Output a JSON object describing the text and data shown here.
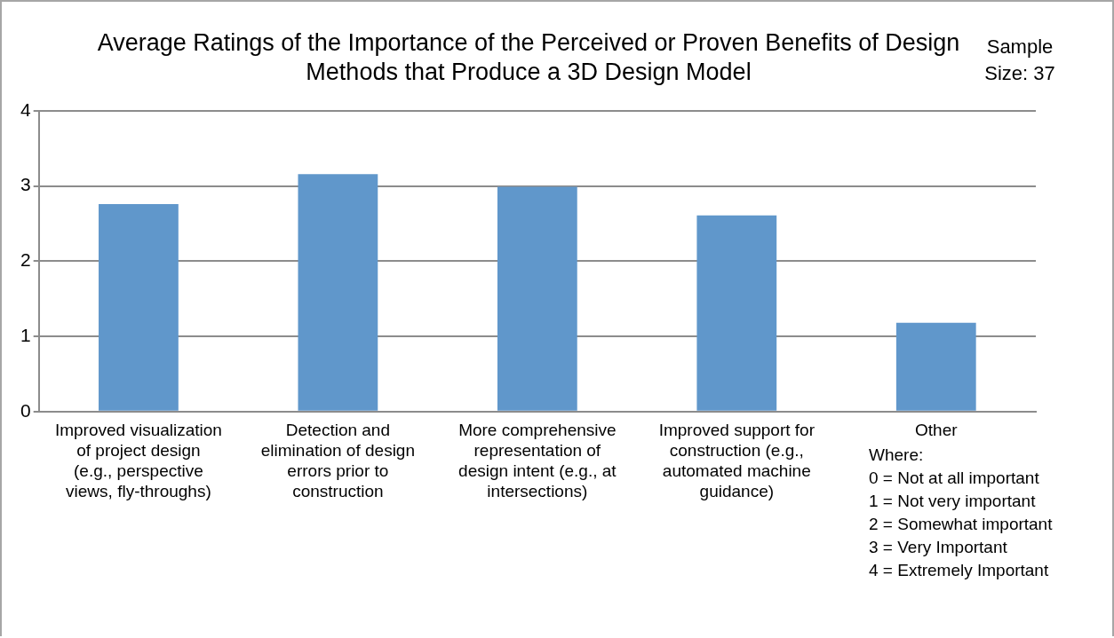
{
  "chart_data": {
    "type": "bar",
    "title": "Average Ratings of the Importance of the Perceived or Proven Benefits of Design Methods that Produce a 3D Design Model",
    "categories": [
      "Improved visualization of project design (e.g., perspective views, fly-throughs)",
      "Detection and elimination of design errors prior to construction",
      "More comprehensive representation of design intent (e.g., at intersections)",
      "Improved support for construction (e.g., automated machine guidance)",
      "Other"
    ],
    "values": [
      2.76,
      3.16,
      2.99,
      2.61,
      1.18
    ],
    "color": "#6097cb",
    "ylim": [
      0,
      4
    ],
    "yticks": [
      0,
      1,
      2,
      3,
      4
    ],
    "grid": "y",
    "legend": false,
    "annotations": [
      "Sample Size: 37",
      "Where:",
      "0 = Not at all important",
      "1 = Not very important",
      "2 = Somewhat important",
      "3 = Very Important",
      "4 = Extremely Important"
    ]
  }
}
